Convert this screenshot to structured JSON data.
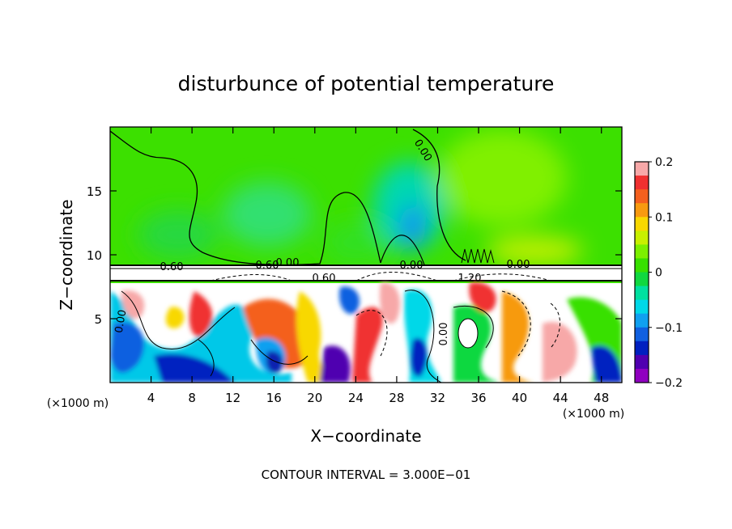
{
  "chart_data": {
    "type": "heatmap",
    "title": "disturbunce of potential temperature",
    "xlabel": "X−coordinate",
    "ylabel": "Z−coordinate",
    "x_unit_left": "(×1000 m)",
    "x_unit_right": "(×1000 m)",
    "xlim": [
      0,
      50
    ],
    "ylim": [
      0,
      20
    ],
    "x_ticks": [
      4,
      8,
      12,
      16,
      20,
      24,
      28,
      32,
      36,
      40,
      44,
      48
    ],
    "x_tick_labels": [
      "4",
      "8",
      "12",
      "16",
      "20",
      "24",
      "28",
      "32",
      "36",
      "40",
      "44",
      "48"
    ],
    "y_ticks": [
      5,
      10,
      15
    ],
    "y_tick_labels": [
      "5",
      "10",
      "15"
    ],
    "colorbar": {
      "range": [
        -0.2,
        0.2
      ],
      "ticks": [
        0.2,
        0.1,
        0,
        -0.1,
        -0.2
      ],
      "tick_labels": [
        "0.2",
        "0.1",
        "0",
        "−0.1",
        "−0.2"
      ],
      "colors": [
        "#f7a8a8",
        "#f03030",
        "#f4601e",
        "#f79a10",
        "#f8d800",
        "#c8f000",
        "#7cf000",
        "#38e000",
        "#10d840",
        "#00e0a0",
        "#00d8e8",
        "#10a0f0",
        "#1060e0",
        "#0020c0",
        "#5000b0",
        "#9000c0"
      ]
    },
    "contour_labels": [
      "0.00",
      "0.60",
      "0.60",
      "0.60",
      "0.00",
      "0.00",
      "0.00",
      "1.20",
      "0.00",
      "0.00"
    ],
    "grid": false,
    "legend": "colorbar-right"
  },
  "footer": "CONTOUR INTERVAL = 3.000E−01"
}
